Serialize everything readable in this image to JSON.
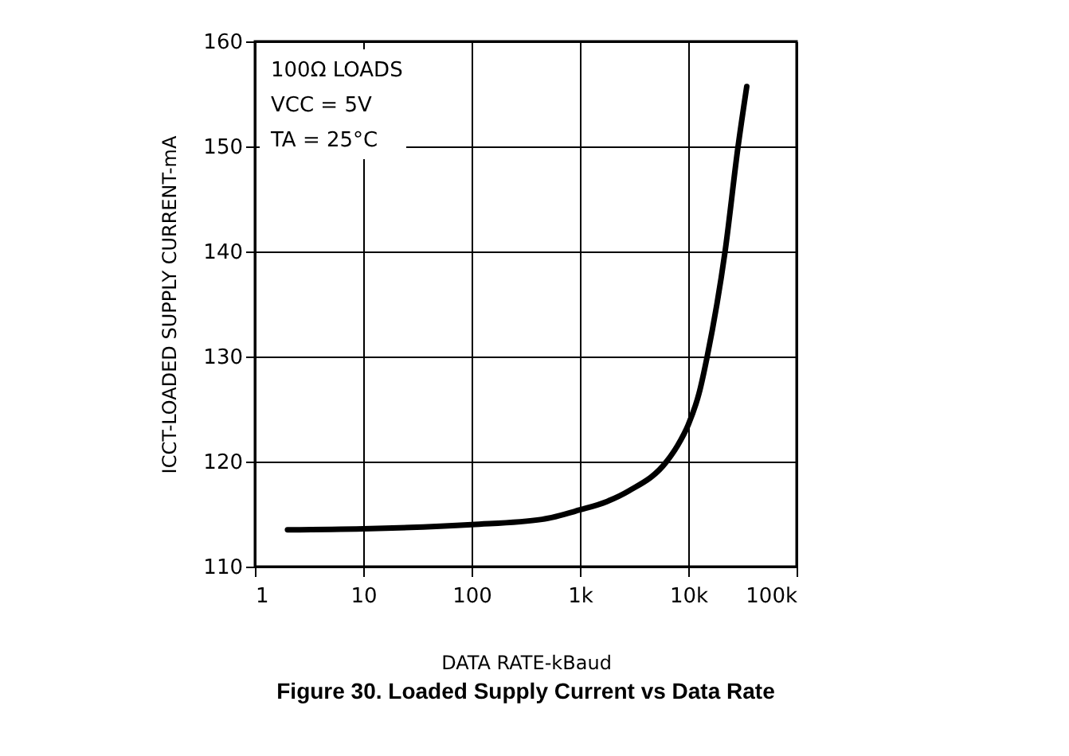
{
  "chart_data": {
    "type": "line",
    "title": "Figure 30. Loaded Supply Current vs Data Rate",
    "xlabel": "DATA RATE-kBaud",
    "ylabel": "ICCT-LOADED SUPPLY CURRENT-mA",
    "annotations": [
      "100Ω LOADS",
      "VCC = 5V",
      "TA = 25°C"
    ],
    "log": "x",
    "grid": true,
    "marker": "none",
    "line_style": "solid",
    "xlim": [
      1,
      100000
    ],
    "xticks": [
      1,
      10,
      100,
      {
        "value": 1000,
        "label": "1k"
      },
      {
        "value": 10000,
        "label": "10k"
      },
      {
        "value": 100000,
        "label": "100k"
      }
    ],
    "ylim": [
      110,
      160
    ],
    "yticks": [
      110,
      120,
      130,
      140,
      150,
      160
    ],
    "series": [
      {
        "color": "#000000",
        "x": [
          2,
          10,
          100,
          447,
          1000,
          1778,
          2818,
          6310,
          7943,
          10000,
          12589,
          14962,
          21878,
          28840,
          34674
        ],
        "values": [
          113.5,
          113.6,
          114.0,
          114.5,
          115.4,
          116.2,
          117.2,
          120.0,
          121.5,
          123.5,
          126.5,
          130,
          140,
          150,
          155.7
        ]
      }
    ]
  }
}
